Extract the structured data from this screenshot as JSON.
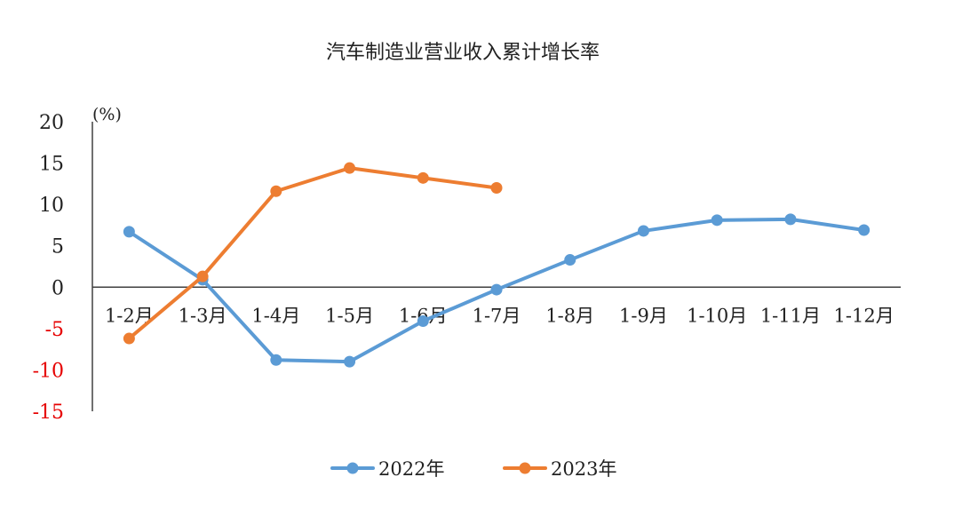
{
  "chart_data": {
    "type": "line",
    "title": "汽车制造业营业收入累计增长率",
    "unit_label": "(%)",
    "categories": [
      "1-2月",
      "1-3月",
      "1-4月",
      "1-5月",
      "1-6月",
      "1-7月",
      "1-8月",
      "1-9月",
      "1-10月",
      "1-11月",
      "1-12月"
    ],
    "y_ticks": [
      "20",
      "15",
      "10",
      "5",
      "0",
      "-5",
      "-10",
      "-15"
    ],
    "ylim": [
      -15,
      20
    ],
    "grid": false,
    "legend_position": "bottom",
    "series": [
      {
        "name": "2022年",
        "color": "#5b9bd5",
        "values": [
          6.7,
          0.9,
          -8.8,
          -9.0,
          -4.1,
          -0.3,
          3.3,
          6.8,
          8.1,
          8.2,
          6.9
        ]
      },
      {
        "name": "2023年",
        "color": "#ed7d31",
        "values": [
          -6.2,
          1.3,
          11.6,
          14.4,
          13.2,
          12.0,
          null,
          null,
          null,
          null,
          null
        ]
      }
    ],
    "colors": {
      "axis": "#404040",
      "negative_tick": "#e60000"
    }
  }
}
